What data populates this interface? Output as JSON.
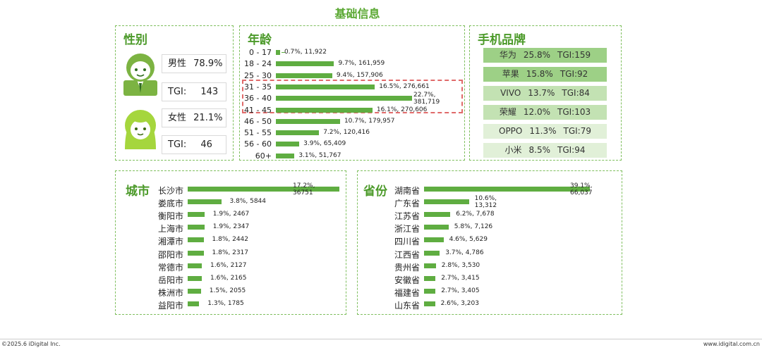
{
  "title": "基础信息",
  "gender": {
    "title": "性别",
    "male": {
      "label": "男性",
      "value": "78.9%",
      "tgi_label": "TGI:",
      "tgi": "143"
    },
    "female": {
      "label": "女性",
      "value": "21.1%",
      "tgi_label": "TGI:",
      "tgi": "46"
    }
  },
  "age_title": "年龄",
  "brand_title": "手机品牌",
  "brands": [
    {
      "name": "华为",
      "pct": "25.8%",
      "tgi": "TGI:159",
      "color": "#9dd086"
    },
    {
      "name": "苹果",
      "pct": "15.8%",
      "tgi": "TGI:92",
      "color": "#9dd086"
    },
    {
      "name": "VIVO",
      "pct": "13.7%",
      "tgi": "TGI:84",
      "color": "#c3e2b3"
    },
    {
      "name": "荣耀",
      "pct": "12.0%",
      "tgi": "TGI:103",
      "color": "#c3e2b3"
    },
    {
      "name": "OPPO",
      "pct": "11.3%",
      "tgi": "TGI:79",
      "color": "#e1f0d8"
    },
    {
      "name": "小米",
      "pct": "8.5%",
      "tgi": "TGI:94",
      "color": "#e1f0d8"
    }
  ],
  "city_title": "城市",
  "province_title": "省份",
  "chart_data": [
    {
      "type": "bar",
      "orientation": "horizontal",
      "categories": [
        "0 - 17",
        "18 - 24",
        "25 - 30",
        "31 - 35",
        "36 - 40",
        "41 - 45",
        "46 - 50",
        "51 - 55",
        "56 - 60",
        "60+"
      ],
      "values": [
        0.7,
        9.7,
        9.4,
        16.5,
        22.7,
        16.1,
        10.7,
        7.2,
        3.9,
        3.1
      ],
      "counts": [
        11922,
        161959,
        157906,
        276661,
        381719,
        270606,
        179957,
        120416,
        65409,
        51767
      ],
      "labels": [
        "0.7%, 11,922",
        "9.7%, 161,959",
        "9.4%, 157,906",
        "16.5%, 276,661",
        "22.7%, 381,719",
        "16.1%, 270,606",
        "10.7%, 179,957",
        "7.2%, 120,416",
        "3.9%, 65,409",
        "3.1%, 51,767"
      ],
      "highlighted": [
        "31 - 35",
        "36 - 40",
        "41 - 45"
      ]
    },
    {
      "type": "bar",
      "orientation": "horizontal",
      "categories": [
        "长沙市",
        "娄底市",
        "衡阳市",
        "上海市",
        "湘潭市",
        "邵阳市",
        "常德市",
        "岳阳市",
        "株洲市",
        "益阳市"
      ],
      "values": [
        17.2,
        3.8,
        1.9,
        1.9,
        1.8,
        1.8,
        1.6,
        1.6,
        1.5,
        1.3
      ],
      "counts": [
        36751,
        5844,
        2467,
        2347,
        2442,
        2317,
        2127,
        2165,
        2055,
        1785
      ],
      "labels": [
        "17.2%, 36751",
        "3.8%, 5844",
        "1.9%, 2467",
        "1.9%, 2347",
        "1.8%, 2442",
        "1.8%, 2317",
        "1.6%, 2127",
        "1.6%, 2165",
        "1.5%, 2055",
        "1.3%, 1785"
      ]
    },
    {
      "type": "bar",
      "orientation": "horizontal",
      "categories": [
        "湖南省",
        "广东省",
        "江苏省",
        "浙江省",
        "四川省",
        "江西省",
        "贵州省",
        "安徽省",
        "福建省",
        "山东省"
      ],
      "values": [
        39.1,
        10.6,
        6.2,
        5.8,
        4.6,
        3.7,
        2.8,
        2.7,
        2.7,
        2.6
      ],
      "counts": [
        66037,
        13312,
        7678,
        7126,
        5629,
        4786,
        3530,
        3415,
        3405,
        3203
      ],
      "labels": [
        "39.1%, 66,037",
        "10.6%, 13,312",
        "6.2%, 7,678",
        "5.8%, 7,126",
        "4.6%, 5,629",
        "3.7%, 4,786",
        "2.8%, 3,530",
        "2.7%, 3,415",
        "2.7%, 3,405",
        "2.6%, 3,203"
      ]
    }
  ],
  "colors": {
    "bar": "#5fad41",
    "accent": "#4c9a2a",
    "highlight_border": "#e06a6a"
  },
  "footer": {
    "left": "©2025.6 iDigital Inc.",
    "right": "www.idigital.com.cn"
  }
}
